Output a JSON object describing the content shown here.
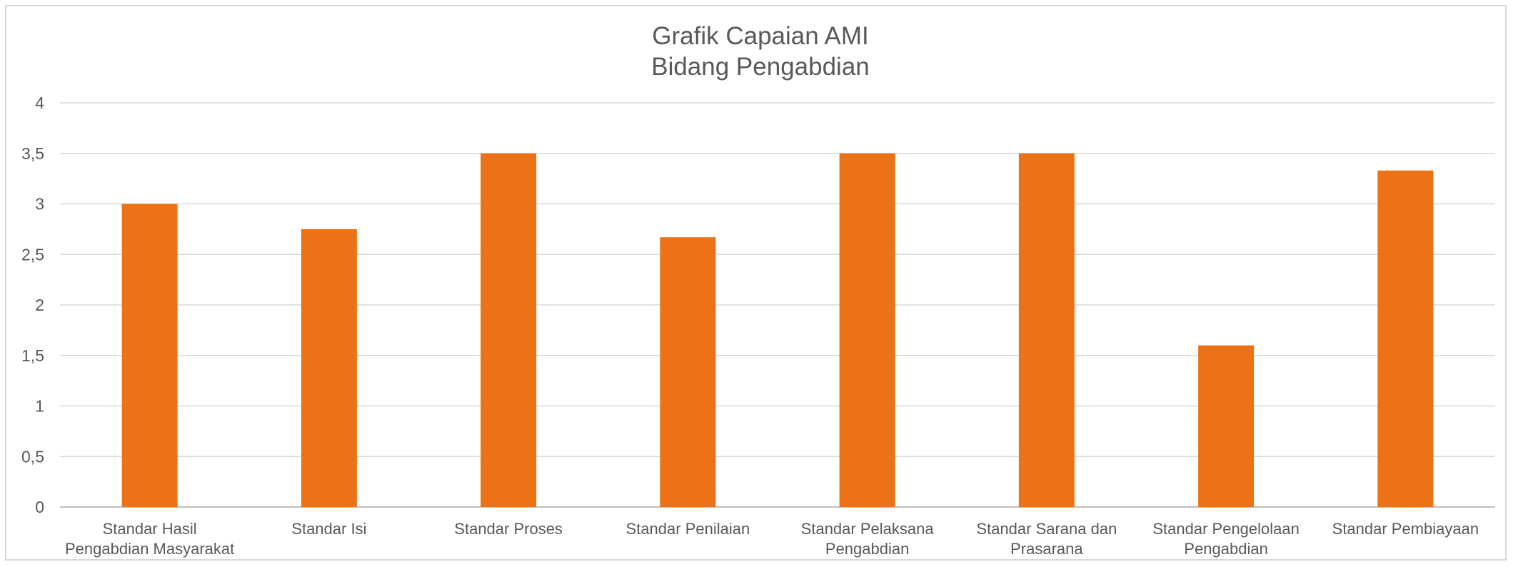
{
  "chart_data": {
    "type": "bar",
    "title": [
      "Grafik Capaian AMI",
      "Bidang Pengabdian"
    ],
    "xlabel": "",
    "ylabel": "",
    "ylim": [
      0,
      4
    ],
    "yticks": [
      "0",
      "0,5",
      "1",
      "1,5",
      "2",
      "2,5",
      "3",
      "3,5",
      "4"
    ],
    "grid": true,
    "legend": "none",
    "bar_color": "#ed7117",
    "categories": [
      [
        "Standar Hasil",
        "Pengabdian Masyarakat"
      ],
      [
        "Standar Isi"
      ],
      [
        "Standar Proses"
      ],
      [
        "Standar Penilaian"
      ],
      [
        "Standar Pelaksana",
        "Pengabdian"
      ],
      [
        "Standar Sarana dan",
        "Prasarana"
      ],
      [
        "Standar Pengelolaan",
        "Pengabdian"
      ],
      [
        "Standar Pembiayaan"
      ]
    ],
    "values": [
      3.0,
      2.75,
      3.5,
      2.67,
      3.5,
      3.5,
      1.6,
      3.33
    ]
  }
}
